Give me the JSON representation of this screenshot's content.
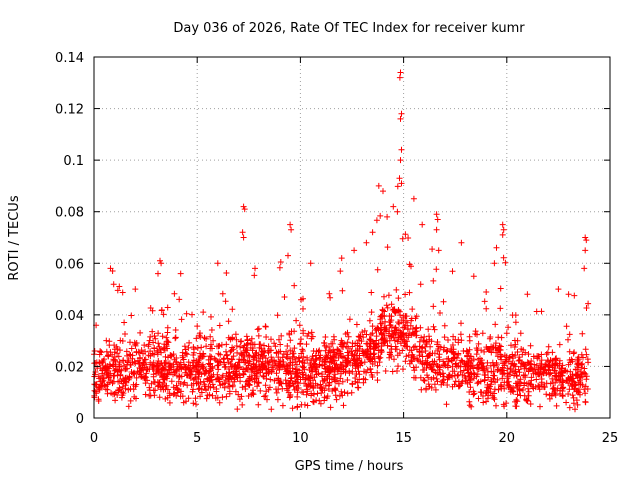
{
  "chart_data": {
    "type": "scatter",
    "title": "Day 036 of 2026, Rate Of TEC Index for receiver kumr",
    "xlabel": "GPS time / hours",
    "ylabel": "ROTI / TECUs",
    "xlim": [
      0,
      25
    ],
    "ylim": [
      0,
      0.14
    ],
    "x_ticks": [
      0,
      5,
      10,
      15,
      20,
      25
    ],
    "x_tick_labels": [
      "0",
      "5",
      "10",
      "15",
      "20",
      "25"
    ],
    "y_ticks": [
      0,
      0.02,
      0.04,
      0.06,
      0.08,
      0.1,
      0.12,
      0.14
    ],
    "y_tick_labels": [
      "0",
      "0.02",
      "0.04",
      "0.06",
      "0.08",
      "0.1",
      "0.12",
      "0.14"
    ],
    "grid": true,
    "marker": "+",
    "color": "#ff0000",
    "series": [
      {
        "name": "ROTI",
        "envelope": [
          {
            "x": 0.0,
            "mean": 0.016,
            "max": 0.027
          },
          {
            "x": 0.8,
            "mean": 0.018,
            "max": 0.058
          },
          {
            "x": 1.5,
            "mean": 0.017,
            "max": 0.048
          },
          {
            "x": 2.0,
            "mean": 0.018,
            "max": 0.05
          },
          {
            "x": 3.2,
            "mean": 0.019,
            "max": 0.061
          },
          {
            "x": 4.2,
            "mean": 0.017,
            "max": 0.056
          },
          {
            "x": 5.0,
            "mean": 0.018,
            "max": 0.049
          },
          {
            "x": 6.0,
            "mean": 0.018,
            "max": 0.06
          },
          {
            "x": 7.3,
            "mean": 0.02,
            "max": 0.082
          },
          {
            "x": 8.0,
            "mean": 0.019,
            "max": 0.058
          },
          {
            "x": 9.5,
            "mean": 0.018,
            "max": 0.075
          },
          {
            "x": 10.5,
            "mean": 0.017,
            "max": 0.06
          },
          {
            "x": 12.0,
            "mean": 0.019,
            "max": 0.062
          },
          {
            "x": 13.5,
            "mean": 0.026,
            "max": 0.08
          },
          {
            "x": 14.0,
            "mean": 0.031,
            "max": 0.09
          },
          {
            "x": 14.8,
            "mean": 0.034,
            "max": 0.134
          },
          {
            "x": 15.5,
            "mean": 0.028,
            "max": 0.085
          },
          {
            "x": 16.5,
            "mean": 0.022,
            "max": 0.08
          },
          {
            "x": 17.5,
            "mean": 0.02,
            "max": 0.068
          },
          {
            "x": 18.5,
            "mean": 0.019,
            "max": 0.068
          },
          {
            "x": 19.8,
            "mean": 0.018,
            "max": 0.075
          },
          {
            "x": 21.0,
            "mean": 0.017,
            "max": 0.048
          },
          {
            "x": 22.5,
            "mean": 0.016,
            "max": 0.05
          },
          {
            "x": 23.8,
            "mean": 0.016,
            "max": 0.07
          }
        ],
        "points": [
          {
            "x": 14.85,
            "y": 0.134
          },
          {
            "x": 14.82,
            "y": 0.132
          },
          {
            "x": 14.9,
            "y": 0.118
          },
          {
            "x": 14.85,
            "y": 0.116
          },
          {
            "x": 14.9,
            "y": 0.104
          },
          {
            "x": 14.85,
            "y": 0.1
          },
          {
            "x": 14.8,
            "y": 0.093
          },
          {
            "x": 14.9,
            "y": 0.091
          },
          {
            "x": 15.5,
            "y": 0.085
          },
          {
            "x": 13.8,
            "y": 0.09
          },
          {
            "x": 14.0,
            "y": 0.088
          },
          {
            "x": 14.5,
            "y": 0.082
          },
          {
            "x": 7.25,
            "y": 0.082
          },
          {
            "x": 7.3,
            "y": 0.081
          },
          {
            "x": 7.2,
            "y": 0.072
          },
          {
            "x": 7.25,
            "y": 0.07
          },
          {
            "x": 9.5,
            "y": 0.075
          },
          {
            "x": 9.55,
            "y": 0.073
          },
          {
            "x": 9.4,
            "y": 0.063
          },
          {
            "x": 16.6,
            "y": 0.079
          },
          {
            "x": 16.65,
            "y": 0.077
          },
          {
            "x": 16.6,
            "y": 0.073
          },
          {
            "x": 16.7,
            "y": 0.065
          },
          {
            "x": 19.8,
            "y": 0.075
          },
          {
            "x": 19.85,
            "y": 0.073
          },
          {
            "x": 19.8,
            "y": 0.071
          },
          {
            "x": 19.5,
            "y": 0.066
          },
          {
            "x": 19.4,
            "y": 0.06
          },
          {
            "x": 23.8,
            "y": 0.07
          },
          {
            "x": 23.85,
            "y": 0.069
          },
          {
            "x": 23.8,
            "y": 0.065
          },
          {
            "x": 23.75,
            "y": 0.058
          },
          {
            "x": 0.8,
            "y": 0.058
          },
          {
            "x": 0.9,
            "y": 0.057
          },
          {
            "x": 3.2,
            "y": 0.061
          },
          {
            "x": 3.25,
            "y": 0.06
          },
          {
            "x": 3.1,
            "y": 0.056
          },
          {
            "x": 4.2,
            "y": 0.056
          },
          {
            "x": 6.0,
            "y": 0.06
          },
          {
            "x": 7.8,
            "y": 0.058
          },
          {
            "x": 10.5,
            "y": 0.06
          },
          {
            "x": 12.0,
            "y": 0.062
          },
          {
            "x": 12.6,
            "y": 0.065
          },
          {
            "x": 13.2,
            "y": 0.068
          },
          {
            "x": 17.8,
            "y": 0.068
          },
          {
            "x": 18.4,
            "y": 0.055
          },
          {
            "x": 0.1,
            "y": 0.036
          },
          {
            "x": 22.5,
            "y": 0.05
          },
          {
            "x": 21.0,
            "y": 0.048
          },
          {
            "x": 2.0,
            "y": 0.05
          },
          {
            "x": 15.9,
            "y": 0.075
          },
          {
            "x": 14.2,
            "y": 0.078
          },
          {
            "x": 13.5,
            "y": 0.072
          },
          {
            "x": 14.7,
            "y": 0.08
          }
        ]
      }
    ]
  }
}
